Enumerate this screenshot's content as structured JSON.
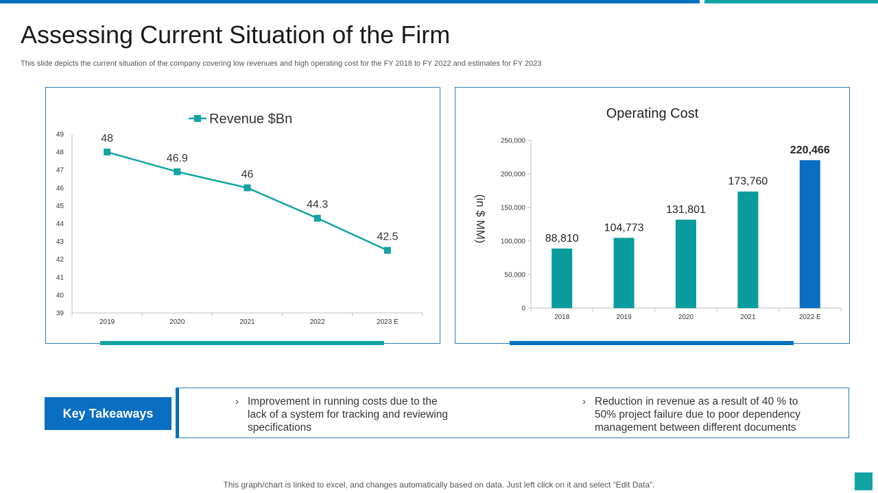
{
  "page": {
    "title": "Assessing Current Situation of the Firm",
    "subtitle": "This slide depicts the current situation of the company covering low revenues and high operating cost for the FY 2018 to FY 2022 and estimates for FY 2023",
    "footer": "This graph/chart is linked to excel, and changes automatically based on data. Just left click on it and select “Edit Data”.",
    "colors": {
      "teal": "#12a3a3",
      "blue": "#0070c0",
      "highlight": "#0a6fc2"
    }
  },
  "takeaways": {
    "label": "Key Takeaways",
    "chevron": "›",
    "items": [
      "Improvement  in running  costs due to the lack of a system for tracking and reviewing specifications",
      "Reduction in revenue as a result of 40 % to 50% project failure due to poor dependency management between different documents"
    ]
  },
  "chart_data": [
    {
      "type": "line",
      "title": "",
      "legend": "Revenue $Bn",
      "legend_position": "top-center",
      "categories": [
        "2019",
        "2020",
        "2021",
        "2022",
        "2023 E"
      ],
      "values": [
        48,
        46.9,
        46,
        44.3,
        42.5
      ],
      "data_labels": [
        "48",
        "46.9",
        "46",
        "44.3",
        "42.5"
      ],
      "ylim": [
        39,
        49
      ],
      "yticks": [
        "39",
        "40",
        "41",
        "42",
        "43",
        "44",
        "45",
        "46",
        "47",
        "48",
        "49"
      ],
      "xlabel": "",
      "ylabel": "",
      "color": "#12a3a3"
    },
    {
      "type": "bar",
      "title": "Operating Cost",
      "ylabel": "(in $ MM)",
      "xlabel": "",
      "categories": [
        "2018",
        "2019",
        "2020",
        "2021",
        "2022 E"
      ],
      "values": [
        88810,
        104773,
        131801,
        173760,
        220466
      ],
      "data_labels": [
        "88,810",
        "104,773",
        "131,801",
        "173,760",
        "220,466"
      ],
      "ylim": [
        0,
        250000
      ],
      "yticks": [
        "0",
        "50,000",
        "100,000",
        "150,000",
        "200,000",
        "250,000"
      ],
      "colors": [
        "#0a9c9c",
        "#0a9c9c",
        "#0a9c9c",
        "#0a9c9c",
        "#0a6fc2"
      ]
    }
  ]
}
